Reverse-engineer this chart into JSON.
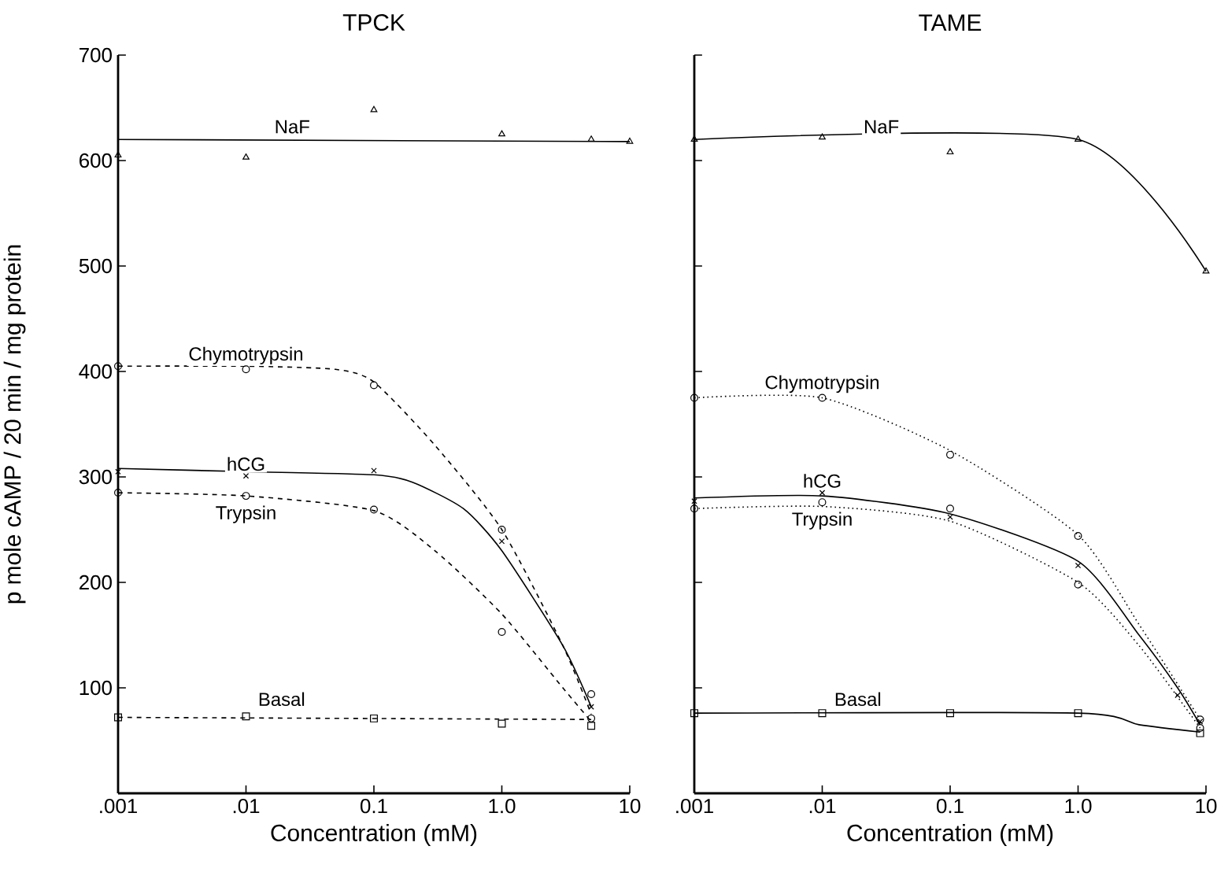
{
  "chart_data": [
    {
      "type": "line",
      "title": "TPCK",
      "xlabel": "Concentration (mM)",
      "ylabel": "p mole cAMP / 20 min / mg protein",
      "log": "x",
      "xlim": [
        0.001,
        10
      ],
      "xticks": [
        {
          "value": 0.001,
          "label": ".001"
        },
        {
          "value": 0.01,
          "label": ".01"
        },
        {
          "value": 0.1,
          "label": "0.1"
        },
        {
          "value": 1,
          "label": "1.0"
        },
        {
          "value": 10,
          "label": "10"
        }
      ],
      "ylim": [
        0,
        700
      ],
      "yticks": [
        100,
        200,
        300,
        400,
        500,
        600,
        700
      ],
      "series": [
        {
          "type": "scatter",
          "marker": "triangle",
          "color": "#000000",
          "x": [
            0.001,
            0.01,
            0.1,
            1,
            5,
            10
          ],
          "values": [
            605,
            603,
            648,
            625,
            620,
            618
          ]
        },
        {
          "type": "line",
          "line_style": "solid",
          "color": "#000000",
          "x": [
            0.001,
            10
          ],
          "values": [
            620,
            618
          ]
        },
        {
          "type": "scatter",
          "marker": "circle",
          "color": "#000000",
          "x": [
            0.001,
            0.01,
            0.1,
            1,
            5
          ],
          "values": [
            405,
            402,
            387,
            250,
            94
          ]
        },
        {
          "type": "line",
          "line_style": "dashed",
          "color": "#000000",
          "x": [
            0.001,
            0.01,
            0.05,
            0.1,
            0.3,
            1,
            3,
            5
          ],
          "values": [
            405,
            405,
            402,
            390,
            330,
            250,
            140,
            75
          ]
        },
        {
          "type": "scatter",
          "marker": "cross",
          "color": "#000000",
          "x": [
            0.001,
            0.01,
            0.1,
            1,
            5
          ],
          "values": [
            305,
            301,
            306,
            239,
            82
          ]
        },
        {
          "type": "line",
          "line_style": "solid",
          "color": "#000000",
          "x": [
            0.001,
            0.01,
            0.1,
            0.2,
            0.5,
            1,
            3,
            5
          ],
          "values": [
            308,
            305,
            302,
            295,
            270,
            230,
            140,
            82
          ]
        },
        {
          "type": "scatter",
          "marker": "circle",
          "color": "#000000",
          "x": [
            0.001,
            0.01,
            0.1,
            1,
            5
          ],
          "values": [
            285,
            282,
            269,
            153,
            71
          ]
        },
        {
          "type": "line",
          "line_style": "dashed",
          "color": "#000000",
          "x": [
            0.001,
            0.01,
            0.1,
            0.3,
            1,
            3,
            5
          ],
          "values": [
            285,
            282,
            268,
            230,
            170,
            100,
            68
          ]
        },
        {
          "type": "scatter",
          "marker": "square",
          "color": "#000000",
          "x": [
            0.001,
            0.01,
            0.1,
            1,
            5
          ],
          "values": [
            72,
            73,
            71,
            66,
            64
          ]
        },
        {
          "type": "line",
          "line_style": "dashed",
          "color": "#000000",
          "x": [
            0.001,
            5
          ],
          "values": [
            72,
            70
          ]
        }
      ],
      "annotations": [
        {
          "text": "NaF",
          "x": 0.023,
          "y": 621
        },
        {
          "text": "Chymotrypsin",
          "x": 0.01,
          "y": 402
        },
        {
          "text": "hCG",
          "x": 0.01,
          "y": 301
        },
        {
          "text": "Trypsin",
          "x": 0.01,
          "y": 282
        },
        {
          "text": "Basal",
          "x": 0.019,
          "y": 78
        }
      ]
    },
    {
      "type": "line",
      "title": "TAME",
      "xlabel": "Concentration (mM)",
      "log": "x",
      "tick_labels": "x",
      "xlim": [
        0.001,
        10
      ],
      "xticks": [
        {
          "value": 0.001,
          "label": ".001"
        },
        {
          "value": 0.01,
          "label": ".01"
        },
        {
          "value": 0.1,
          "label": "0.1"
        },
        {
          "value": 1,
          "label": "1.0"
        },
        {
          "value": 10,
          "label": "10"
        }
      ],
      "ylim": [
        0,
        700
      ],
      "yticks": [
        100,
        200,
        300,
        400,
        500,
        600,
        700
      ],
      "series": [
        {
          "type": "scatter",
          "marker": "triangle",
          "color": "#000000",
          "x": [
            0.001,
            0.01,
            0.1,
            1,
            10
          ],
          "values": [
            620,
            622,
            608,
            620,
            495
          ]
        },
        {
          "type": "line",
          "line_style": "solid",
          "color": "#000000",
          "x": [
            0.001,
            1,
            10
          ],
          "values": [
            620,
            620,
            495
          ]
        },
        {
          "type": "scatter",
          "marker": "circle",
          "color": "#000000",
          "x": [
            0.001,
            0.01,
            0.1,
            1,
            9
          ],
          "values": [
            375,
            375,
            321,
            244,
            70
          ]
        },
        {
          "type": "line",
          "line_style": "dotted",
          "color": "#000000",
          "x": [
            0.001,
            0.01,
            0.1,
            1,
            3,
            9
          ],
          "values": [
            375,
            375,
            325,
            245,
            160,
            70
          ]
        },
        {
          "type": "scatter",
          "marker": "cross",
          "color": "#000000",
          "x": [
            0.001,
            0.01,
            0.1,
            1,
            6,
            9
          ],
          "values": [
            277,
            285,
            262,
            216,
            93,
            68
          ]
        },
        {
          "type": "line",
          "line_style": "solid",
          "color": "#000000",
          "x": [
            0.001,
            0.01,
            0.1,
            1,
            3,
            6,
            9
          ],
          "values": [
            280,
            282,
            265,
            220,
            150,
            100,
            65
          ]
        },
        {
          "type": "scatter",
          "marker": "circle",
          "color": "#000000",
          "x": [
            0.001,
            0.01,
            0.1,
            1,
            9
          ],
          "values": [
            270,
            276,
            270,
            198,
            62
          ]
        },
        {
          "type": "line",
          "line_style": "dotted",
          "color": "#000000",
          "x": [
            0.001,
            0.01,
            0.1,
            1,
            3,
            9
          ],
          "values": [
            270,
            272,
            258,
            200,
            140,
            62
          ]
        },
        {
          "type": "scatter",
          "marker": "square",
          "color": "#000000",
          "x": [
            0.001,
            0.01,
            0.1,
            1,
            9
          ],
          "values": [
            76,
            76,
            76,
            76,
            57
          ]
        },
        {
          "type": "line",
          "line_style": "solid",
          "color": "#000000",
          "x": [
            0.001,
            1,
            3,
            9
          ],
          "values": [
            76,
            76,
            65,
            58
          ]
        }
      ],
      "annotations": [
        {
          "text": "NaF",
          "x": 0.029,
          "y": 621
        },
        {
          "text": "Chymotrypsin",
          "x": 0.01,
          "y": 375
        },
        {
          "text": "hCG",
          "x": 0.01,
          "y": 285
        },
        {
          "text": "Trypsin",
          "x": 0.01,
          "y": 276
        },
        {
          "text": "Basal",
          "x": 0.019,
          "y": 78
        }
      ]
    }
  ]
}
